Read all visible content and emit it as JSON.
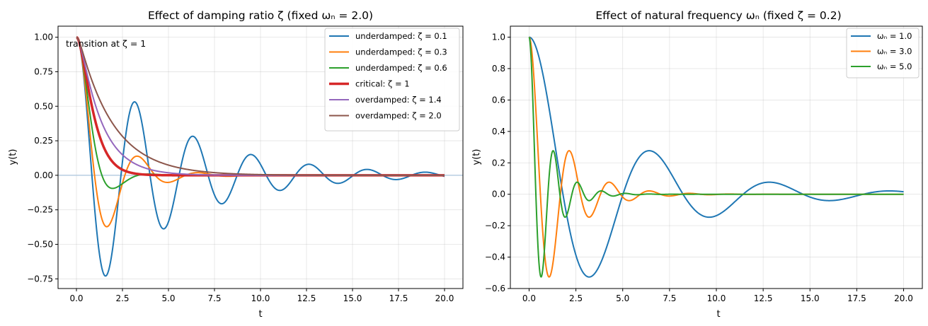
{
  "chart_data": [
    {
      "type": "line",
      "title": "Effect of damping ratio ζ (fixed ωₙ = 2.0)",
      "xlabel": "t",
      "ylabel": "y(t)",
      "xlim": [
        -1.0,
        21.0
      ],
      "ylim": [
        -0.82,
        1.08
      ],
      "xticks": [
        0,
        2.5,
        5,
        7.5,
        10,
        12.5,
        15,
        17.5,
        20
      ],
      "xtick_labels": [
        "0.0",
        "2.5",
        "5.0",
        "7.5",
        "10.0",
        "12.5",
        "15.0",
        "17.5",
        "20.0"
      ],
      "yticks": [
        -0.75,
        -0.5,
        -0.25,
        0,
        0.25,
        0.5,
        0.75,
        1.0
      ],
      "ytick_labels": [
        "−0.75",
        "−0.50",
        "−0.25",
        "0.00",
        "0.25",
        "0.50",
        "0.75",
        "1.00"
      ],
      "grid": true,
      "legend_position": "top-right",
      "annotation": "transition at ζ = 1",
      "reference_line": {
        "y": 0,
        "color": "#aac4dc"
      },
      "omega_n": 2.0,
      "t_range": [
        0,
        20
      ],
      "series": [
        {
          "name": "underdamped: ζ = 0.1",
          "zeta": 0.1,
          "color": "#1f77b4",
          "width": 2
        },
        {
          "name": "underdamped: ζ = 0.3",
          "zeta": 0.3,
          "color": "#ff7f0e",
          "width": 2
        },
        {
          "name": "underdamped: ζ = 0.6",
          "zeta": 0.6,
          "color": "#2ca02c",
          "width": 2
        },
        {
          "name": "critical: ζ = 1",
          "zeta": 1.0,
          "color": "#d62728",
          "width": 3.5
        },
        {
          "name": "overdamped: ζ = 1.4",
          "zeta": 1.4,
          "color": "#9467bd",
          "width": 2
        },
        {
          "name": "overdamped: ζ = 2.0",
          "zeta": 2.0,
          "color": "#8c564b",
          "width": 2
        }
      ]
    },
    {
      "type": "line",
      "title": "Effect of natural frequency ωₙ (fixed ζ = 0.2)",
      "xlabel": "t",
      "ylabel": "y(t)",
      "xlim": [
        -1.0,
        21.0
      ],
      "ylim": [
        -0.6,
        1.07
      ],
      "xticks": [
        0,
        2.5,
        5,
        7.5,
        10,
        12.5,
        15,
        17.5,
        20
      ],
      "xtick_labels": [
        "0.0",
        "2.5",
        "5.0",
        "7.5",
        "10.0",
        "12.5",
        "15.0",
        "17.5",
        "20.0"
      ],
      "yticks": [
        -0.6,
        -0.4,
        -0.2,
        0,
        0.2,
        0.4,
        0.6,
        0.8,
        1.0
      ],
      "ytick_labels": [
        "−0.6",
        "−0.4",
        "−0.2",
        "0.0",
        "0.2",
        "0.4",
        "0.6",
        "0.8",
        "1.0"
      ],
      "grid": true,
      "legend_position": "top-right",
      "zeta": 0.2,
      "t_range": [
        0,
        20
      ],
      "series": [
        {
          "name": "ωₙ = 1.0",
          "omega_n": 1.0,
          "color": "#1f77b4",
          "width": 2
        },
        {
          "name": "ωₙ = 3.0",
          "omega_n": 3.0,
          "color": "#ff7f0e",
          "width": 2
        },
        {
          "name": "ωₙ = 5.0",
          "omega_n": 5.0,
          "color": "#2ca02c",
          "width": 2
        }
      ]
    }
  ]
}
